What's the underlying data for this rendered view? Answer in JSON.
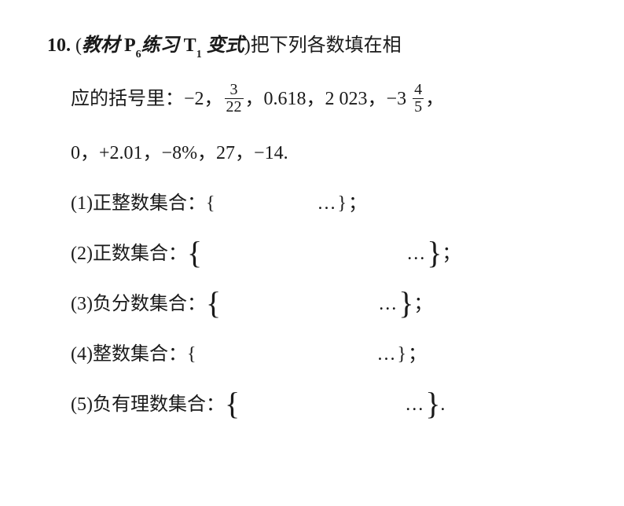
{
  "problem": {
    "number": "10.",
    "source_prefix": "(",
    "source_italic1": "教材 ",
    "source_p": "P",
    "source_psub": "6",
    "source_italic2": "练习 ",
    "source_t": "T",
    "source_tsub": "1",
    "source_italic3": " 变式",
    "source_suffix": ")",
    "stem_part1": "把下列各数填在相",
    "stem_part2": "应的括号里：",
    "numbers": {
      "n1": "−2，",
      "frac1_num": "3",
      "frac1_den": "22",
      "n2": "，0.618，2 023，−3 ",
      "frac2_num": "4",
      "frac2_den": "5",
      "n3": "，",
      "line2": "0，+2.01，−8%，27，−14."
    },
    "items": {
      "i1_label": "(1)正整数集合：{",
      "i1_dots": "…}；",
      "i2_label": "(2)正数集合：",
      "i2_dots": "…",
      "i2_end": "；",
      "i3_label": "(3)负分数集合：",
      "i3_dots": "…",
      "i3_end": "；",
      "i4_label": "(4)整数集合：{",
      "i4_dots": "…}；",
      "i5_label": "(5)负有理数集合：",
      "i5_dots": "…",
      "i5_end": "."
    }
  }
}
